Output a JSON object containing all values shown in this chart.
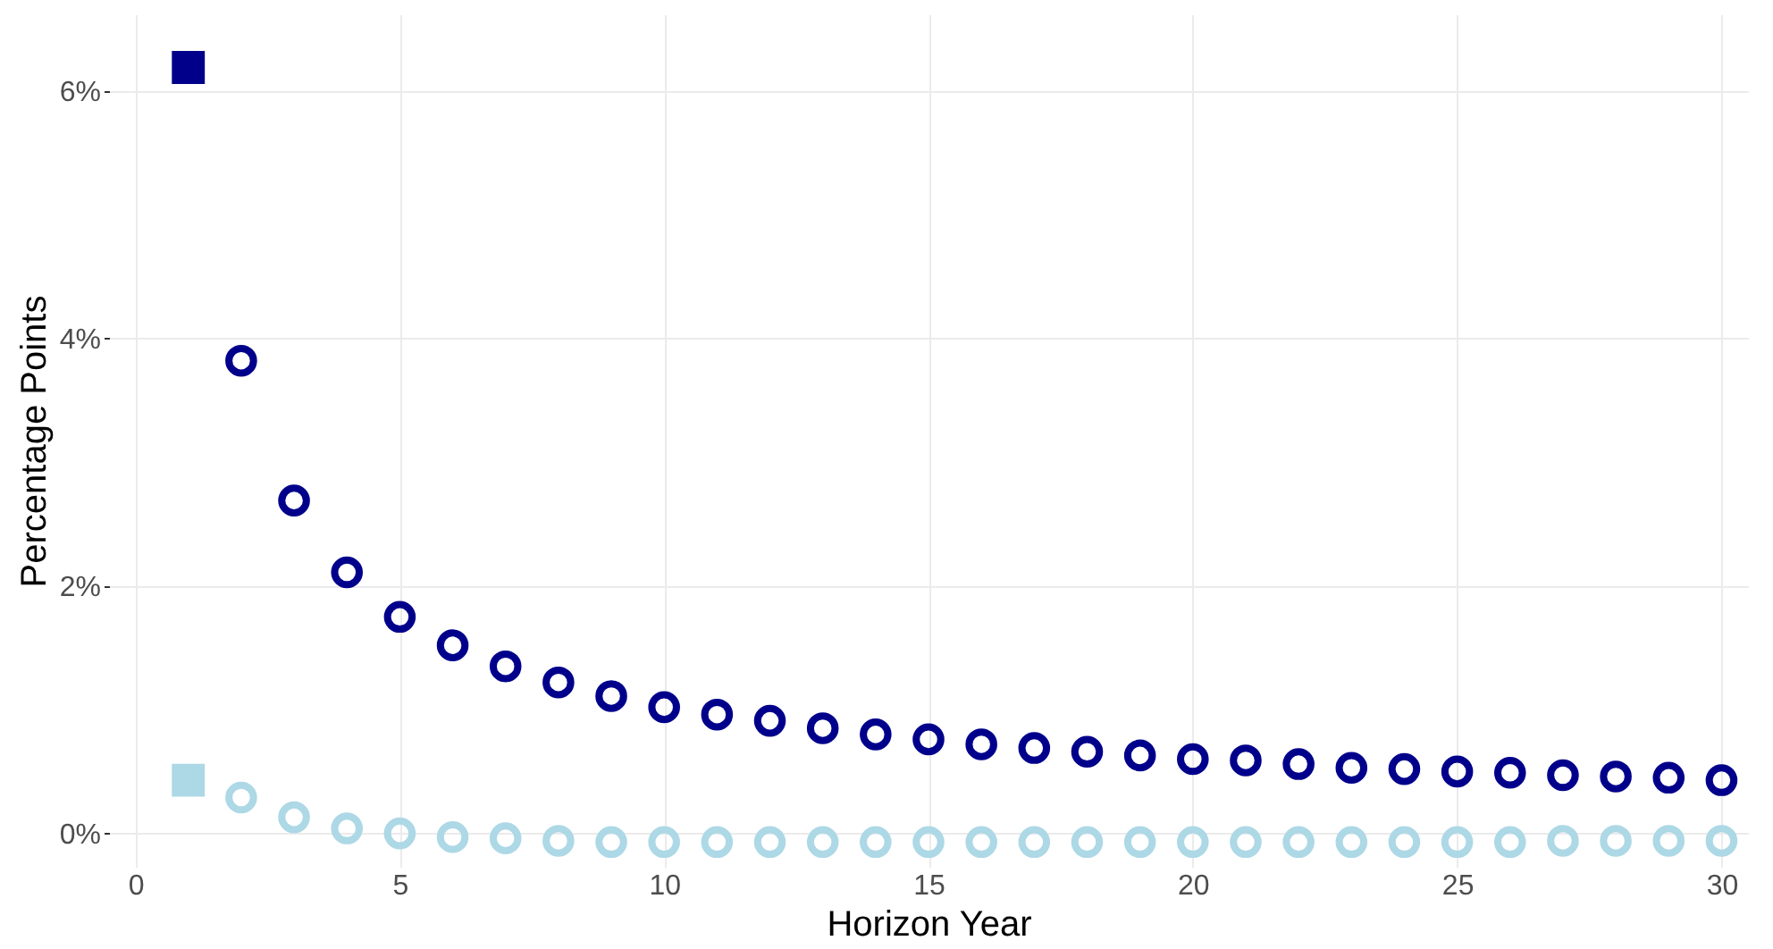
{
  "chart_data": {
    "type": "scatter",
    "xlabel": "Horizon Year",
    "ylabel": "Percentage Points",
    "xlim": [
      -0.5,
      30.5
    ],
    "xticks": [
      0,
      5,
      10,
      15,
      20,
      25,
      30
    ],
    "ylim": [
      -0.27,
      6.62
    ],
    "yticks": [
      {
        "value": 0,
        "label": "0%"
      },
      {
        "value": 2,
        "label": "2%"
      },
      {
        "value": 4,
        "label": "4%"
      },
      {
        "value": 6,
        "label": "6%"
      }
    ],
    "grid": true,
    "series": [
      {
        "color": "#00008b",
        "marker": "square",
        "x": [
          1
        ],
        "values": [
          6.19
        ]
      },
      {
        "color": "#00008b",
        "marker": "circle",
        "x": [
          2,
          3,
          4,
          5,
          6,
          7,
          8,
          9,
          10,
          11,
          12,
          13,
          14,
          15,
          16,
          17,
          18,
          19,
          20,
          21,
          22,
          23,
          24,
          25,
          26,
          27,
          28,
          29,
          30
        ],
        "values": [
          3.82,
          2.69,
          2.11,
          1.75,
          1.52,
          1.35,
          1.22,
          1.11,
          1.02,
          0.96,
          0.91,
          0.85,
          0.8,
          0.76,
          0.72,
          0.69,
          0.66,
          0.63,
          0.6,
          0.59,
          0.56,
          0.53,
          0.52,
          0.5,
          0.49,
          0.47,
          0.46,
          0.45,
          0.43
        ]
      },
      {
        "color": "#add8e6",
        "marker": "square",
        "x": [
          1
        ],
        "values": [
          0.43
        ]
      },
      {
        "color": "#add8e6",
        "marker": "circle",
        "x": [
          2,
          3,
          4,
          5,
          6,
          7,
          8,
          9,
          10,
          11,
          12,
          13,
          14,
          15,
          16,
          17,
          18,
          19,
          20,
          21,
          22,
          23,
          24,
          25,
          26,
          27,
          28,
          29,
          30
        ],
        "values": [
          0.29,
          0.13,
          0.04,
          0.0,
          -0.03,
          -0.04,
          -0.06,
          -0.07,
          -0.07,
          -0.07,
          -0.07,
          -0.07,
          -0.07,
          -0.07,
          -0.07,
          -0.07,
          -0.07,
          -0.07,
          -0.07,
          -0.07,
          -0.07,
          -0.07,
          -0.07,
          -0.07,
          -0.07,
          -0.06,
          -0.06,
          -0.06,
          -0.06
        ]
      }
    ]
  }
}
